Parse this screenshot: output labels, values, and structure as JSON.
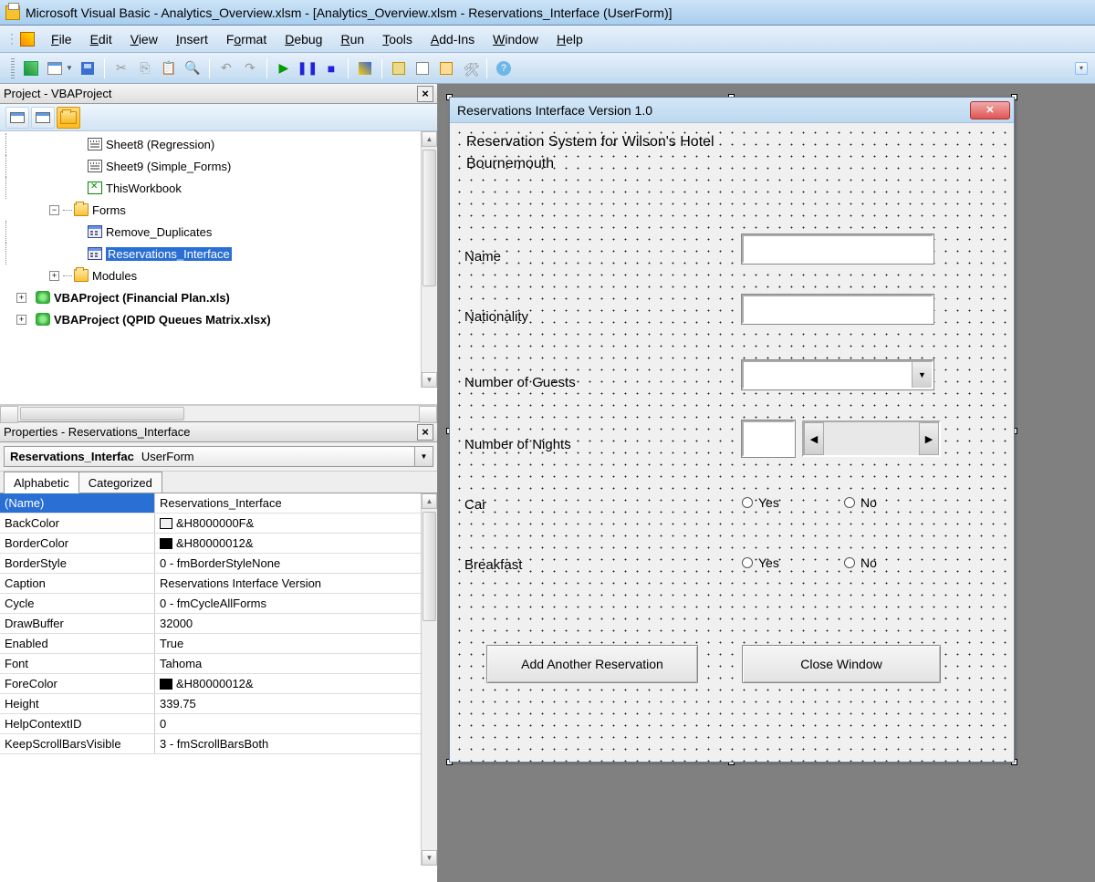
{
  "title": "Microsoft Visual Basic - Analytics_Overview.xlsm - [Analytics_Overview.xlsm - Reservations_Interface (UserForm)]",
  "menu": {
    "file": "File",
    "edit": "Edit",
    "view": "View",
    "insert": "Insert",
    "format": "Format",
    "debug": "Debug",
    "run": "Run",
    "tools": "Tools",
    "addins": "Add-Ins",
    "window": "Window",
    "help": "Help"
  },
  "project_panel": {
    "title": "Project - VBAProject",
    "tree": {
      "sheet8": "Sheet8 (Regression)",
      "sheet9": "Sheet9 (Simple_Forms)",
      "thiswb": "ThisWorkbook",
      "forms": "Forms",
      "remove_dup": "Remove_Duplicates",
      "res_int": "Reservations_Interface",
      "modules": "Modules",
      "proj_fin": "VBAProject (Financial Plan.xls)",
      "proj_qpid": "VBAProject (QPID Queues Matrix.xlsx)"
    }
  },
  "properties_panel": {
    "title": "Properties - Reservations_Interface",
    "object_name": "Reservations_Interfac",
    "object_type": "UserForm",
    "tab_alpha": "Alphabetic",
    "tab_cat": "Categorized",
    "rows": [
      {
        "name": "(Name)",
        "val": "Reservations_Interface",
        "sel": true
      },
      {
        "name": "BackColor",
        "val": "&H8000000F&",
        "swatch": "#f0f0f0"
      },
      {
        "name": "BorderColor",
        "val": "&H80000012&",
        "swatch": "#000000"
      },
      {
        "name": "BorderStyle",
        "val": "0 - fmBorderStyleNone"
      },
      {
        "name": "Caption",
        "val": "Reservations Interface Version"
      },
      {
        "name": "Cycle",
        "val": "0 - fmCycleAllForms"
      },
      {
        "name": "DrawBuffer",
        "val": "32000"
      },
      {
        "name": "Enabled",
        "val": "True"
      },
      {
        "name": "Font",
        "val": "Tahoma"
      },
      {
        "name": "ForeColor",
        "val": "&H80000012&",
        "swatch": "#000000"
      },
      {
        "name": "Height",
        "val": "339.75"
      },
      {
        "name": "HelpContextID",
        "val": "0"
      },
      {
        "name": "KeepScrollBarsVisible",
        "val": "3 - fmScrollBarsBoth"
      }
    ]
  },
  "userform": {
    "caption": "Reservations Interface Version 1.0",
    "heading1": "Reservation System for Wilson's Hotel",
    "heading2": "Bournemouth",
    "lbl_name": "Name",
    "lbl_nat": "Nationality",
    "lbl_guests": "Number of Guests",
    "lbl_nights": "Number of Nights",
    "lbl_car": "Car",
    "lbl_breakfast": "Breakfast",
    "yes": "Yes",
    "no": "No",
    "btn_add": "Add Another Reservation",
    "btn_close": "Close Window"
  }
}
